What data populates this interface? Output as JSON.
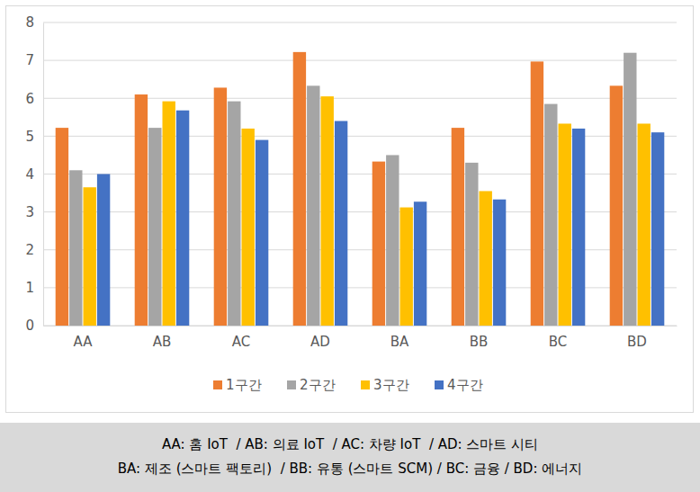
{
  "chart_data": {
    "type": "bar",
    "categories": [
      "AA",
      "AB",
      "AC",
      "AD",
      "BA",
      "BB",
      "BC",
      "BD"
    ],
    "series": [
      {
        "name": "1구간",
        "color": "#ed7d31",
        "values": [
          5.22,
          6.1,
          6.28,
          7.22,
          4.33,
          5.22,
          6.97,
          6.33
        ]
      },
      {
        "name": "2구간",
        "color": "#a5a5a5",
        "values": [
          4.1,
          5.22,
          5.92,
          6.33,
          4.5,
          4.3,
          5.85,
          7.2
        ]
      },
      {
        "name": "3구간",
        "color": "#ffc000",
        "values": [
          3.65,
          5.92,
          5.2,
          6.05,
          3.12,
          3.55,
          5.33,
          5.33
        ]
      },
      {
        "name": "4구간",
        "color": "#4472c4",
        "values": [
          4.0,
          5.68,
          4.9,
          5.4,
          3.27,
          3.33,
          5.2,
          5.1
        ]
      }
    ],
    "ylim": [
      0,
      8
    ],
    "yticks": [
      0,
      1,
      2,
      3,
      4,
      5,
      6,
      7,
      8
    ],
    "grid": true,
    "legend": "bottom",
    "annotations": [
      "AA: 홈 IoT  / AB: 의료 IoT  / AC: 차량 IoT  / AD: 스마트 시티",
      "BA: 제조 (스마트 팩토리)  / BB: 유통 (스마트 SCM) / BC: 금융 / BD: 에너지"
    ]
  }
}
